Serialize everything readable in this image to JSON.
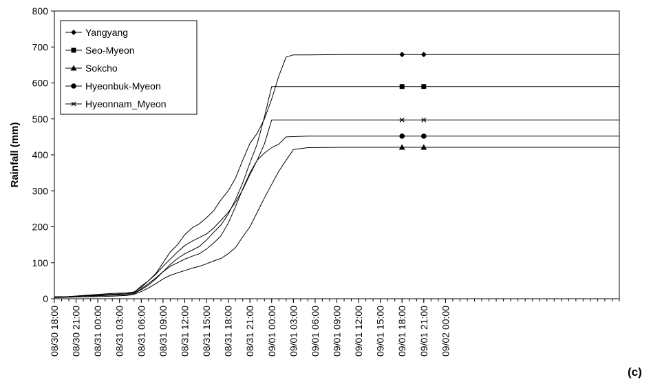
{
  "chart_data": {
    "type": "line",
    "title": "",
    "xlabel": "",
    "ylabel": "Rainfall (mm)",
    "panel_label": "(c)",
    "ylim": [
      0,
      800
    ],
    "yticks": [
      0,
      100,
      200,
      300,
      400,
      500,
      600,
      700,
      800
    ],
    "x_hours_range": [
      0,
      78
    ],
    "x_ticks": [
      {
        "h": 0,
        "label": "08/30 18:00"
      },
      {
        "h": 3,
        "label": "08/30 21:00"
      },
      {
        "h": 6,
        "label": "08/31 00:00"
      },
      {
        "h": 9,
        "label": "08/31 03:00"
      },
      {
        "h": 12,
        "label": "08/31 06:00"
      },
      {
        "h": 15,
        "label": "08/31 09:00"
      },
      {
        "h": 18,
        "label": "08/31 12:00"
      },
      {
        "h": 21,
        "label": "08/31 15:00"
      },
      {
        "h": 24,
        "label": "08/31 18:00"
      },
      {
        "h": 27,
        "label": "08/31 21:00"
      },
      {
        "h": 30,
        "label": "09/01 00:00"
      },
      {
        "h": 33,
        "label": "09/01 03:00"
      },
      {
        "h": 36,
        "label": "09/01 06:00"
      },
      {
        "h": 39,
        "label": "09/01 09:00"
      },
      {
        "h": 42,
        "label": "09/01 12:00"
      },
      {
        "h": 45,
        "label": "09/01 15:00"
      },
      {
        "h": 48,
        "label": "09/01 18:00"
      },
      {
        "h": 51,
        "label": "09/01 21:00"
      },
      {
        "h": 54,
        "label": "09/02 00:00"
      }
    ],
    "grid": false,
    "legend_position": "top-left",
    "series": [
      {
        "name": "Yangyang",
        "marker": "diamond",
        "marker_hours": [
          48,
          51
        ],
        "points": [
          [
            0,
            5
          ],
          [
            2,
            6
          ],
          [
            4,
            8
          ],
          [
            6,
            10
          ],
          [
            8,
            12
          ],
          [
            10,
            14
          ],
          [
            11,
            18
          ],
          [
            12,
            35
          ],
          [
            13,
            50
          ],
          [
            14,
            70
          ],
          [
            15,
            100
          ],
          [
            16,
            130
          ],
          [
            17,
            150
          ],
          [
            18,
            178
          ],
          [
            19,
            197
          ],
          [
            20,
            208
          ],
          [
            21,
            225
          ],
          [
            22,
            245
          ],
          [
            23,
            275
          ],
          [
            24,
            300
          ],
          [
            25,
            335
          ],
          [
            26,
            385
          ],
          [
            27,
            432
          ],
          [
            28,
            460
          ],
          [
            29,
            500
          ],
          [
            30,
            555
          ],
          [
            31,
            620
          ],
          [
            32,
            672
          ],
          [
            33,
            678
          ],
          [
            35,
            678
          ],
          [
            40,
            679
          ],
          [
            45,
            679
          ],
          [
            50,
            679
          ],
          [
            54,
            679
          ]
        ]
      },
      {
        "name": "Seo-Myeon",
        "marker": "square",
        "marker_hours": [
          48,
          51
        ],
        "points": [
          [
            0,
            5
          ],
          [
            2,
            6
          ],
          [
            4,
            7
          ],
          [
            6,
            8
          ],
          [
            8,
            10
          ],
          [
            10,
            11
          ],
          [
            11,
            14
          ],
          [
            12,
            25
          ],
          [
            13,
            38
          ],
          [
            14,
            55
          ],
          [
            15,
            75
          ],
          [
            16,
            95
          ],
          [
            17,
            112
          ],
          [
            18,
            125
          ],
          [
            19,
            135
          ],
          [
            20,
            145
          ],
          [
            21,
            163
          ],
          [
            22,
            185
          ],
          [
            23,
            205
          ],
          [
            24,
            235
          ],
          [
            25,
            275
          ],
          [
            26,
            322
          ],
          [
            27,
            378
          ],
          [
            28,
            430
          ],
          [
            29,
            505
          ],
          [
            30,
            590
          ],
          [
            32,
            590
          ],
          [
            40,
            590
          ],
          [
            54,
            590
          ]
        ]
      },
      {
        "name": "Sokcho",
        "marker": "triangle",
        "marker_hours": [
          48,
          51
        ],
        "points": [
          [
            0,
            3
          ],
          [
            2,
            4
          ],
          [
            4,
            5
          ],
          [
            6,
            6
          ],
          [
            8,
            7
          ],
          [
            10,
            9
          ],
          [
            11,
            12
          ],
          [
            12,
            20
          ],
          [
            13,
            30
          ],
          [
            14,
            42
          ],
          [
            15,
            55
          ],
          [
            16,
            65
          ],
          [
            17,
            72
          ],
          [
            18,
            78
          ],
          [
            19,
            85
          ],
          [
            20,
            90
          ],
          [
            21,
            97
          ],
          [
            22,
            105
          ],
          [
            23,
            112
          ],
          [
            24,
            125
          ],
          [
            25,
            142
          ],
          [
            26,
            172
          ],
          [
            27,
            200
          ],
          [
            28,
            240
          ],
          [
            29,
            280
          ],
          [
            30,
            318
          ],
          [
            31,
            355
          ],
          [
            32,
            385
          ],
          [
            33,
            415
          ],
          [
            35,
            420
          ],
          [
            40,
            421
          ],
          [
            45,
            421
          ],
          [
            54,
            421
          ]
        ]
      },
      {
        "name": "Hyeonbuk-Myeon",
        "marker": "circle",
        "marker_hours": [
          48,
          51
        ],
        "points": [
          [
            0,
            5
          ],
          [
            2,
            6
          ],
          [
            4,
            8
          ],
          [
            6,
            10
          ],
          [
            8,
            12
          ],
          [
            10,
            14
          ],
          [
            11,
            16
          ],
          [
            12,
            28
          ],
          [
            13,
            42
          ],
          [
            14,
            58
          ],
          [
            15,
            75
          ],
          [
            16,
            90
          ],
          [
            17,
            100
          ],
          [
            18,
            110
          ],
          [
            19,
            118
          ],
          [
            20,
            125
          ],
          [
            21,
            138
          ],
          [
            22,
            155
          ],
          [
            23,
            175
          ],
          [
            24,
            210
          ],
          [
            25,
            255
          ],
          [
            26,
            305
          ],
          [
            27,
            350
          ],
          [
            28,
            385
          ],
          [
            29,
            405
          ],
          [
            30,
            420
          ],
          [
            31,
            430
          ],
          [
            32,
            450
          ],
          [
            35,
            452
          ],
          [
            40,
            452
          ],
          [
            54,
            452
          ]
        ]
      },
      {
        "name": "Hyeonnam_Myeon",
        "marker": "asterisk",
        "marker_hours": [
          48,
          51
        ],
        "points": [
          [
            0,
            5
          ],
          [
            2,
            6
          ],
          [
            4,
            9
          ],
          [
            6,
            12
          ],
          [
            8,
            15
          ],
          [
            10,
            16
          ],
          [
            11,
            19
          ],
          [
            12,
            32
          ],
          [
            13,
            50
          ],
          [
            14,
            68
          ],
          [
            15,
            90
          ],
          [
            16,
            110
          ],
          [
            17,
            130
          ],
          [
            18,
            148
          ],
          [
            19,
            160
          ],
          [
            20,
            170
          ],
          [
            21,
            180
          ],
          [
            22,
            197
          ],
          [
            23,
            218
          ],
          [
            24,
            240
          ],
          [
            25,
            268
          ],
          [
            26,
            303
          ],
          [
            27,
            345
          ],
          [
            28,
            385
          ],
          [
            29,
            430
          ],
          [
            30,
            497
          ],
          [
            31,
            497
          ],
          [
            40,
            497
          ],
          [
            54,
            497
          ]
        ]
      }
    ]
  }
}
